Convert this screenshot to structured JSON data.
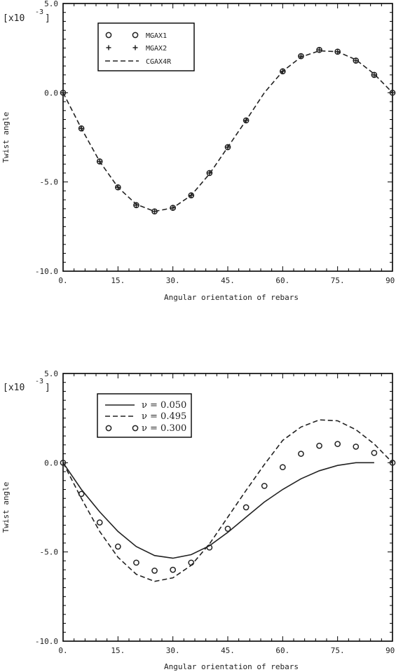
{
  "chart_data": [
    {
      "type": "scatter",
      "xlabel": "Angular orientation of rebars",
      "ylabel": "Twist angle",
      "y_multiplier": "[x10",
      "y_multiplier_exp": "-3",
      "y_multiplier_close": "]",
      "xlim": [
        0,
        90
      ],
      "ylim": [
        -10,
        5
      ],
      "xticks": [
        0,
        15,
        30,
        45,
        60,
        75,
        90
      ],
      "xtick_labels": [
        "0.",
        "15.",
        "30.",
        "45.",
        "60.",
        "75.",
        "90."
      ],
      "yticks": [
        5,
        0,
        -5,
        -10
      ],
      "ytick_labels": [
        "5.0",
        "0.0",
        "-5.0",
        "-10.0"
      ],
      "grid": false,
      "legend": "top-left",
      "series": [
        {
          "name": "MGAX1",
          "style": "marker-circle",
          "x": [
            0,
            5,
            10,
            15,
            20,
            25,
            30,
            35,
            40,
            45,
            50,
            60,
            65,
            70,
            75,
            80,
            85,
            90
          ],
          "y": [
            0.0,
            -2.0,
            -3.85,
            -5.3,
            -6.3,
            -6.65,
            -6.45,
            -5.75,
            -4.5,
            -3.05,
            -1.55,
            1.2,
            2.05,
            2.4,
            2.3,
            1.8,
            1.0,
            0.0
          ]
        },
        {
          "name": "MGAX2",
          "style": "marker-plus",
          "x": [
            0,
            5,
            10,
            15,
            20,
            25,
            30,
            35,
            40,
            45,
            50,
            60,
            65,
            70,
            75,
            80,
            85,
            90
          ],
          "y": [
            0.0,
            -2.0,
            -3.85,
            -5.3,
            -6.3,
            -6.65,
            -6.45,
            -5.75,
            -4.5,
            -3.05,
            -1.55,
            1.2,
            2.05,
            2.4,
            2.3,
            1.8,
            1.0,
            0.0
          ]
        },
        {
          "name": "CGAX4R",
          "style": "line-dashed",
          "x": [
            0,
            5,
            10,
            15,
            20,
            25,
            30,
            35,
            40,
            45,
            50,
            55,
            60,
            65,
            70,
            75,
            80,
            85,
            90
          ],
          "y": [
            0.0,
            -2.0,
            -3.85,
            -5.3,
            -6.25,
            -6.65,
            -6.45,
            -5.75,
            -4.55,
            -3.05,
            -1.55,
            0.0,
            1.2,
            2.0,
            2.35,
            2.3,
            1.85,
            1.05,
            0.0
          ]
        }
      ]
    },
    {
      "type": "line",
      "xlabel": "Angular orientation of rebars",
      "ylabel": "Twist angle",
      "y_multiplier": "[x10",
      "y_multiplier_exp": "-3",
      "y_multiplier_close": "]",
      "xlim": [
        0,
        90
      ],
      "ylim": [
        -10,
        5
      ],
      "xticks": [
        0,
        15,
        30,
        45,
        60,
        75,
        90
      ],
      "xtick_labels": [
        "0.",
        "15.",
        "30.",
        "45.",
        "60.",
        "75.",
        "90."
      ],
      "yticks": [
        5,
        0,
        -5,
        -10
      ],
      "ytick_labels": [
        "5.0",
        "0.0",
        "-5.0",
        "-10.0"
      ],
      "grid": false,
      "legend": "top-left",
      "series": [
        {
          "name": "ν = 0.050",
          "style": "line-solid",
          "x": [
            0,
            5,
            10,
            15,
            20,
            25,
            30,
            35,
            40,
            45,
            50,
            55,
            60,
            65,
            70,
            75,
            80,
            85
          ],
          "y": [
            0.0,
            -1.5,
            -2.75,
            -3.85,
            -4.7,
            -5.2,
            -5.35,
            -5.15,
            -4.65,
            -3.9,
            -3.05,
            -2.2,
            -1.5,
            -0.9,
            -0.45,
            -0.15,
            0.0,
            0.0
          ]
        },
        {
          "name": "ν = 0.495",
          "style": "line-dashed",
          "x": [
            0,
            5,
            10,
            15,
            20,
            25,
            30,
            35,
            40,
            45,
            50,
            55,
            60,
            65,
            70,
            75,
            80,
            85,
            90
          ],
          "y": [
            0.0,
            -2.0,
            -3.85,
            -5.3,
            -6.25,
            -6.65,
            -6.45,
            -5.75,
            -4.55,
            -3.05,
            -1.55,
            -0.1,
            1.25,
            2.0,
            2.4,
            2.35,
            1.85,
            1.05,
            0.0
          ]
        },
        {
          "name": "ν = 0.300",
          "style": "marker-circle",
          "x": [
            0,
            5,
            10,
            15,
            20,
            25,
            30,
            35,
            40,
            45,
            50,
            55,
            60,
            65,
            70,
            75,
            80,
            85,
            90
          ],
          "y": [
            0.0,
            -1.75,
            -3.35,
            -4.7,
            -5.6,
            -6.05,
            -6.0,
            -5.6,
            -4.75,
            -3.7,
            -2.5,
            -1.3,
            -0.25,
            0.5,
            0.95,
            1.05,
            0.9,
            0.55,
            0.0
          ]
        }
      ]
    }
  ]
}
